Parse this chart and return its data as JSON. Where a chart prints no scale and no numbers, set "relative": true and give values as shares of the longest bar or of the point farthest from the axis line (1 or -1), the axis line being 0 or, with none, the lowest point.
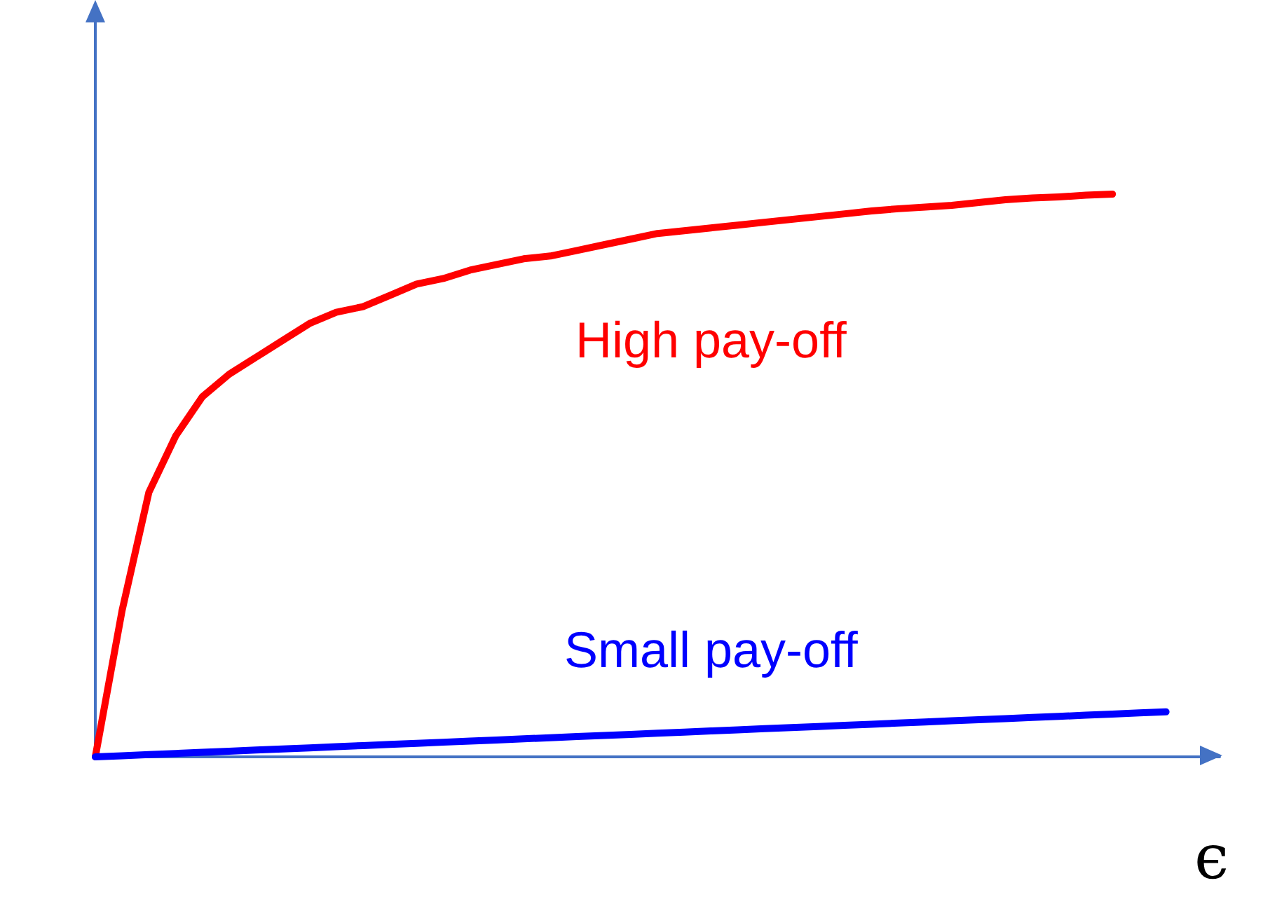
{
  "chart_data": {
    "type": "line",
    "xlabel": "ϵ",
    "relative": true,
    "grid": false,
    "legend": false,
    "marker": "none",
    "line_style": "solid",
    "categories": [
      null,
      null,
      null,
      null,
      null,
      null,
      null,
      null,
      null,
      null,
      null,
      null,
      null,
      null,
      null,
      null,
      null,
      null,
      null,
      null,
      null,
      null,
      null,
      null,
      null,
      null,
      null,
      null,
      null,
      null,
      null,
      null,
      null,
      null,
      null,
      null,
      null,
      null,
      null,
      null,
      null,
      null,
      null
    ],
    "series": [
      {
        "name": "High pay-off",
        "color": "#ff0000",
        "values": [
          0,
          0.26,
          0.47,
          0.57,
          0.64,
          0.68,
          0.71,
          0.74,
          0.77,
          0.79,
          0.8,
          0.82,
          0.84,
          0.85,
          0.865,
          0.875,
          0.885,
          0.89,
          0.9,
          0.91,
          0.92,
          0.93,
          0.935,
          0.94,
          0.945,
          0.95,
          0.955,
          0.96,
          0.965,
          0.97,
          0.974,
          0.977,
          0.98,
          0.985,
          0.99,
          0.993,
          0.995,
          0.998,
          1,
          null,
          null,
          null,
          null
        ]
      },
      {
        "name": "Small pay-off",
        "color": "#0000ff",
        "values": [
          0,
          0.002,
          0.004,
          0.006,
          0.008,
          0.01,
          0.012,
          0.014,
          0.016,
          0.018,
          0.02,
          0.022,
          0.024,
          0.026,
          0.028,
          0.03,
          0.032,
          0.034,
          0.036,
          0.038,
          0.04,
          0.042,
          0.044,
          0.046,
          0.048,
          0.05,
          0.052,
          0.054,
          0.056,
          0.058,
          0.06,
          0.062,
          0.064,
          0.066,
          0.068,
          0.07,
          0.072,
          0.074,
          0.076,
          0.078,
          0.08,
          null,
          null
        ]
      }
    ]
  }
}
